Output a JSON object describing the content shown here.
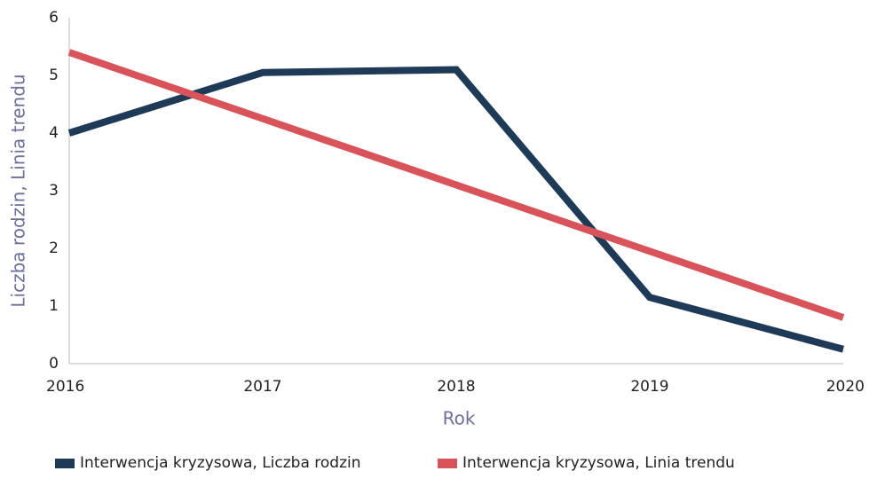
{
  "chart_data": {
    "type": "line",
    "x_label": "Rok",
    "y_label": "Liczba rodzin, Linia trendu",
    "x": [
      2016,
      2017,
      2018,
      2019,
      2020
    ],
    "xlim": [
      2016,
      2020
    ],
    "xticks": [
      2016,
      2017,
      2018,
      2019,
      2020
    ],
    "ylim": [
      0,
      6
    ],
    "yticks": [
      0,
      1,
      2,
      3,
      4,
      5,
      6
    ],
    "grid": false,
    "legend": "bottom",
    "series": [
      {
        "name": "Interwencja kryzysowa, Liczba rodzin",
        "color": "#1f3a57",
        "values": [
          4,
          5.05,
          5.1,
          1.15,
          0.25
        ]
      },
      {
        "name": "Interwencja kryzysowa, Linia trendu",
        "color": "#d9535a",
        "values": [
          5.4,
          4.25,
          3.1,
          1.95,
          0.8
        ]
      }
    ]
  }
}
